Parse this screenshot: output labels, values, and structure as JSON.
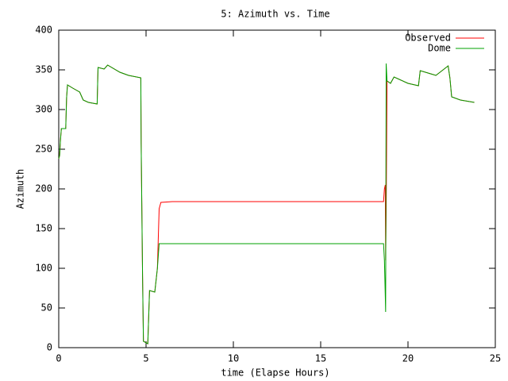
{
  "chart_data": {
    "type": "line",
    "title": "5: Azimuth vs. Time",
    "xlabel": "time (Elapse Hours)",
    "ylabel": "Azimuth",
    "x": [
      0.0,
      0.05,
      0.1,
      0.15,
      0.4,
      0.45,
      0.5,
      0.8,
      1.2,
      1.4,
      1.7,
      2.2,
      2.25,
      2.6,
      2.8,
      3.5,
      4.0,
      4.7,
      4.72,
      4.8,
      4.85,
      5.1,
      5.2,
      5.5,
      5.65,
      5.75,
      5.85,
      6.5,
      18.6,
      18.65,
      18.7,
      18.72,
      18.75,
      18.8,
      19.0,
      19.2,
      20.0,
      20.6,
      20.7,
      21.3,
      21.6,
      22.3,
      22.4,
      22.5,
      23.0,
      23.8
    ],
    "series": [
      {
        "name": "Observed",
        "color": "#ff0000",
        "values": [
          238,
          242,
          262,
          276,
          276,
          315,
          331,
          327,
          322,
          312,
          309,
          307,
          353,
          351,
          356,
          347,
          343,
          340,
          257,
          90,
          8,
          5,
          72,
          70,
          100,
          175,
          183,
          184,
          184,
          200,
          205,
          110,
          170,
          336,
          333,
          341,
          333,
          330,
          349,
          345,
          343,
          355,
          340,
          316,
          312,
          309
        ]
      },
      {
        "name": "Dome",
        "color": "#00a000",
        "values": [
          238,
          242,
          262,
          276,
          276,
          315,
          331,
          327,
          322,
          312,
          309,
          307,
          353,
          351,
          356,
          347,
          343,
          340,
          257,
          90,
          8,
          5,
          72,
          70,
          100,
          131,
          131,
          131,
          131,
          110,
          65,
          45,
          358,
          336,
          333,
          341,
          333,
          330,
          349,
          345,
          343,
          355,
          340,
          316,
          312,
          309
        ]
      }
    ],
    "xlim": [
      0,
      25
    ],
    "xticks": [
      0,
      5,
      10,
      15,
      20,
      25
    ],
    "ylim": [
      0,
      400
    ],
    "yticks": [
      0,
      50,
      100,
      150,
      200,
      250,
      300,
      350,
      400
    ],
    "legend": "top-right",
    "grid": false
  }
}
